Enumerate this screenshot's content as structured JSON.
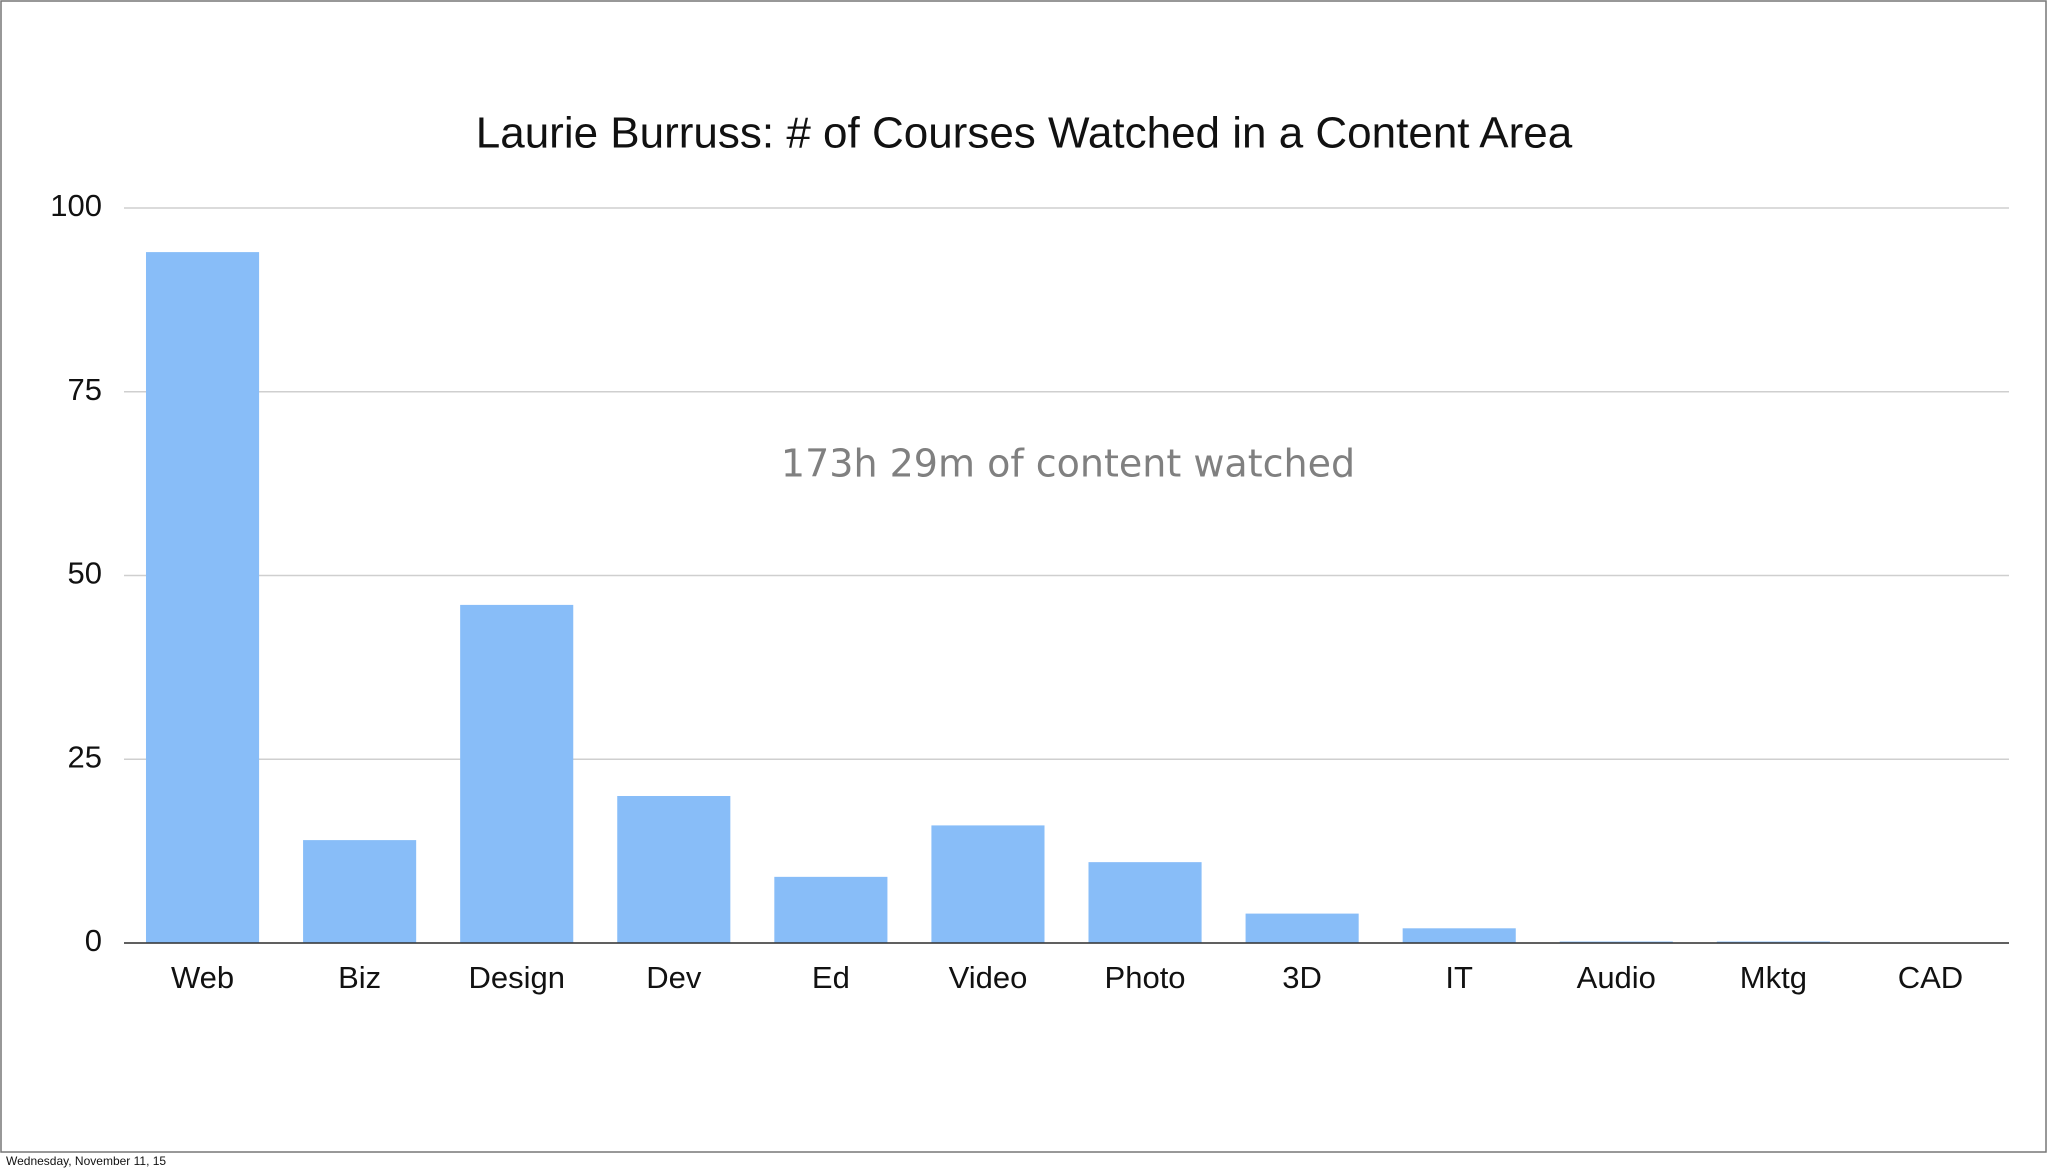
{
  "chart_data": {
    "type": "bar",
    "title": "Laurie Burruss: # of Courses Watched in a Content Area",
    "annotation": "173h 29m of content watched",
    "categories": [
      "Web",
      "Biz",
      "Design",
      "Dev",
      "Ed",
      "Video",
      "Photo",
      "3D",
      "IT",
      "Audio",
      "Mktg",
      "CAD"
    ],
    "values": [
      94,
      14,
      46,
      20,
      9,
      16,
      11,
      4,
      2,
      0.2,
      0.2,
      0
    ],
    "color": "#88bdf8",
    "ylim": [
      0,
      100
    ],
    "yticks": [
      0,
      25,
      50,
      75,
      100
    ],
    "grid": true
  },
  "footer": "Wednesday, November 11, 15"
}
